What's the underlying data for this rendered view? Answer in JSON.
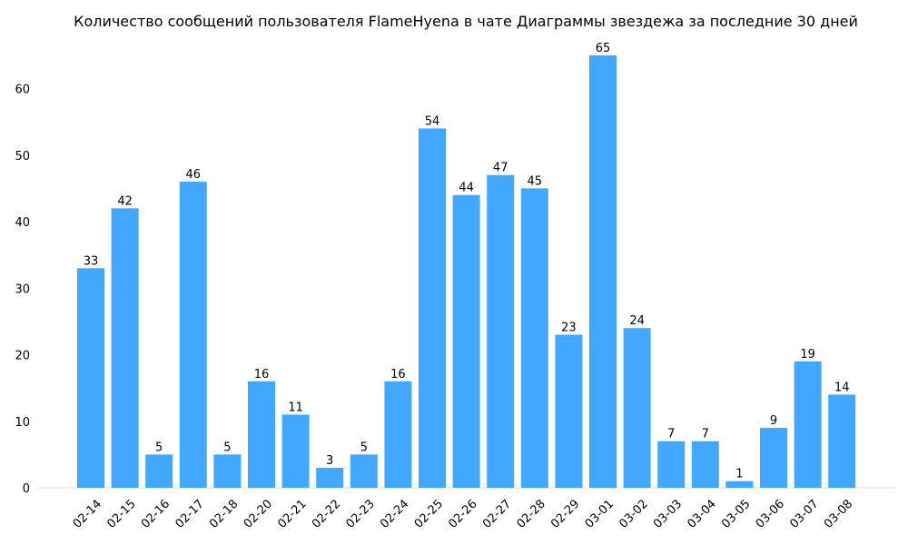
{
  "chart_data": {
    "type": "bar",
    "title": "Количество сообщений пользователя FlameHyena в чате Диаграммы звездежа за последние 30 дней",
    "xlabel": "",
    "ylabel": "",
    "categories": [
      "02-14",
      "02-15",
      "02-16",
      "02-17",
      "02-18",
      "02-20",
      "02-21",
      "02-22",
      "02-23",
      "02-24",
      "02-25",
      "02-26",
      "02-27",
      "02-28",
      "02-29",
      "03-01",
      "03-02",
      "03-03",
      "03-04",
      "03-05",
      "03-06",
      "03-07",
      "03-08"
    ],
    "values": [
      33,
      42,
      5,
      46,
      5,
      16,
      11,
      3,
      5,
      16,
      54,
      44,
      47,
      45,
      23,
      65,
      24,
      7,
      7,
      1,
      9,
      19,
      14
    ],
    "ylim": [
      0,
      67
    ],
    "yticks": [
      0,
      10,
      20,
      30,
      40,
      50,
      60
    ],
    "bar_color": "#42a8ff",
    "axis_color": "#d9d9d9",
    "grid": false,
    "data_labels": true,
    "tick_label_rotation": 45
  }
}
